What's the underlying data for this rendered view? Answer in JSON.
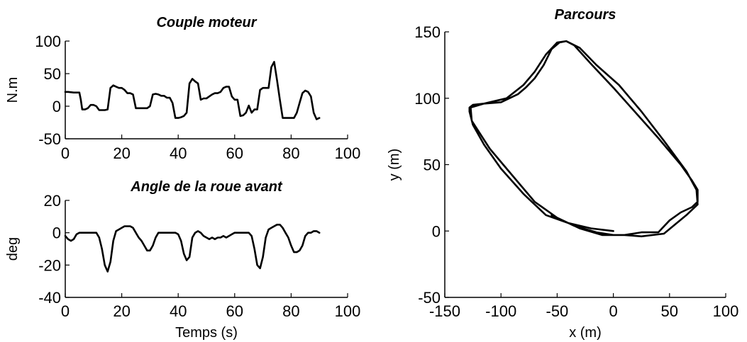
{
  "chart_data": [
    {
      "type": "line",
      "title": "Couple moteur",
      "xlabel": "",
      "ylabel": "N.m",
      "xlim": [
        0,
        100
      ],
      "ylim": [
        -50,
        100
      ],
      "xticks": [
        0,
        20,
        40,
        60,
        80,
        100
      ],
      "yticks": [
        -50,
        0,
        50,
        100
      ],
      "grid": false,
      "series": [
        {
          "x": [
            0,
            1,
            3,
            5,
            5.5,
            6,
            7,
            8,
            9,
            10,
            11,
            12,
            13,
            14,
            15,
            16,
            17,
            18,
            19,
            20,
            21,
            22,
            23,
            24,
            25,
            26,
            27,
            28,
            29,
            30,
            31,
            32,
            33,
            34,
            35,
            36,
            37,
            38,
            39,
            40,
            41,
            42,
            43,
            44,
            45,
            46,
            47,
            48,
            49,
            50,
            51,
            52,
            53,
            54,
            55,
            56,
            57,
            58,
            59,
            60,
            61,
            62,
            63,
            64,
            65,
            66,
            67,
            68,
            69,
            70,
            71,
            72,
            73,
            74,
            75,
            76,
            77,
            78,
            79,
            80,
            81,
            82,
            83,
            84,
            85,
            86,
            87,
            88,
            89,
            90
          ],
          "values": [
            22,
            22,
            21,
            21,
            10,
            -5,
            -5,
            -3,
            2,
            2,
            0,
            -6,
            -6,
            -6,
            -5,
            28,
            32,
            30,
            28,
            28,
            25,
            20,
            20,
            18,
            -3,
            -3,
            -3,
            -3,
            -3,
            0,
            18,
            19,
            18,
            16,
            16,
            13,
            13,
            5,
            -18,
            -18,
            -17,
            -15,
            -10,
            35,
            42,
            38,
            35,
            10,
            12,
            12,
            15,
            18,
            20,
            20,
            22,
            28,
            30,
            30,
            15,
            10,
            10,
            -15,
            -14,
            -10,
            1,
            -10,
            -5,
            -5,
            25,
            28,
            28,
            28,
            60,
            68,
            40,
            10,
            -18,
            -18,
            -18,
            -18,
            -18,
            -10,
            5,
            20,
            24,
            22,
            15,
            -10,
            -20,
            -18
          ]
        }
      ]
    },
    {
      "type": "line",
      "title": "Angle de la roue avant",
      "xlabel": "Temps (s)",
      "ylabel": "deg",
      "xlim": [
        0,
        100
      ],
      "ylim": [
        -40,
        20
      ],
      "xticks": [
        0,
        20,
        40,
        60,
        80,
        100
      ],
      "yticks": [
        -40,
        -20,
        0,
        20
      ],
      "grid": false,
      "series": [
        {
          "x": [
            0,
            1,
            2,
            3,
            4,
            5,
            6,
            7,
            8,
            9,
            10,
            11,
            12,
            13,
            14,
            15,
            16,
            17,
            18,
            19,
            20,
            21,
            22,
            23,
            24,
            25,
            26,
            27,
            28,
            29,
            30,
            31,
            32,
            33,
            34,
            35,
            36,
            37,
            38,
            39,
            40,
            41,
            42,
            43,
            44,
            45,
            46,
            47,
            48,
            49,
            50,
            51,
            52,
            53,
            54,
            55,
            56,
            57,
            58,
            59,
            60,
            61,
            62,
            63,
            64,
            65,
            66,
            67,
            68,
            69,
            70,
            71,
            72,
            73,
            74,
            75,
            76,
            77,
            78,
            79,
            80,
            81,
            82,
            83,
            84,
            85,
            86,
            87,
            88,
            89,
            90
          ],
          "values": [
            -2,
            -4,
            -5,
            -4,
            -1,
            0,
            0,
            0,
            0,
            0,
            0,
            0,
            -3,
            -10,
            -20,
            -24,
            -18,
            -5,
            1,
            2,
            3,
            4,
            4,
            4,
            3,
            0,
            -3,
            -5,
            -8,
            -11,
            -11,
            -8,
            -3,
            0,
            0,
            0,
            0,
            0,
            0,
            0,
            -1,
            -5,
            -13,
            -17,
            -15,
            -3,
            0,
            1,
            0,
            -2,
            -3,
            -4,
            -3,
            -4,
            -3,
            -3,
            -2,
            -3,
            -2,
            -1,
            0,
            0,
            0,
            0,
            0,
            0,
            -2,
            -10,
            -20,
            -22,
            -15,
            -3,
            2,
            3,
            4,
            5,
            5,
            3,
            0,
            -3,
            -8,
            -12,
            -12,
            -11,
            -8,
            -2,
            0,
            0,
            1,
            1,
            0
          ]
        }
      ]
    },
    {
      "type": "line",
      "title": "Parcours",
      "xlabel": "x (m)",
      "ylabel": "y (m)",
      "xlim": [
        -150,
        100
      ],
      "ylim": [
        -50,
        150
      ],
      "xticks": [
        -150,
        -100,
        -50,
        0,
        50,
        100
      ],
      "yticks": [
        -50,
        0,
        50,
        100,
        150
      ],
      "grid": false,
      "series": [
        {
          "x": [
            0,
            -20,
            -40,
            -60,
            -80,
            -100,
            -115,
            -125,
            -128,
            -128,
            -125,
            -115,
            -100,
            -85,
            -78,
            -70,
            -62,
            -55,
            -48,
            -42,
            -35,
            -20,
            0,
            20,
            40,
            60,
            70,
            75,
            75,
            70,
            60,
            50,
            40,
            25,
            10,
            0,
            -10,
            -30,
            -50,
            -70,
            -90,
            -110,
            -126,
            -127,
            -115,
            -95,
            -80,
            -70,
            -60,
            -50,
            -42,
            -30,
            -15,
            5,
            25,
            45,
            65,
            74,
            75,
            65,
            45,
            25,
            10,
            0,
            -15,
            -35,
            -55
          ],
          "values": [
            0,
            2,
            6,
            12,
            28,
            47,
            65,
            80,
            90,
            93,
            95,
            96,
            97,
            103,
            108,
            115,
            125,
            137,
            142,
            143,
            140,
            126,
            108,
            89,
            70,
            50,
            38,
            31,
            22,
            18,
            14,
            8,
            -1,
            -1,
            -3,
            -3,
            -3,
            2,
            10,
            22,
            42,
            62,
            83,
            93,
            96,
            100,
            110,
            120,
            133,
            142,
            143,
            138,
            125,
            110,
            90,
            68,
            45,
            31,
            20,
            12,
            -2,
            -4,
            -3,
            -3,
            -1,
            4,
            12
          ]
        }
      ]
    }
  ]
}
